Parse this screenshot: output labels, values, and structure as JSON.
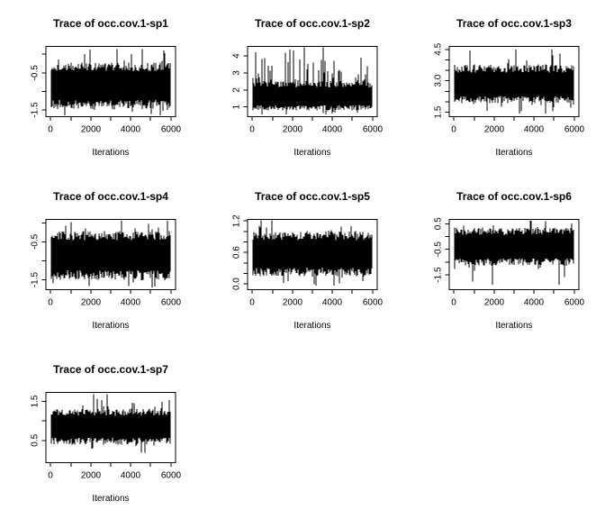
{
  "colors": {
    "foreground": "#000000",
    "background": "#ffffff"
  },
  "chart_data": [
    {
      "type": "line",
      "title": "Trace of occ.cov.1-sp1",
      "xlabel": "Iterations",
      "x": {
        "lim": [
          -240,
          6240
        ],
        "ticks": [
          {
            "v": 0,
            "label": "0"
          },
          {
            "v": 1000,
            "label": ""
          },
          {
            "v": 2000,
            "label": "2000"
          },
          {
            "v": 3000,
            "label": ""
          },
          {
            "v": 4000,
            "label": "4000"
          },
          {
            "v": 5000,
            "label": ""
          },
          {
            "v": 6000,
            "label": "6000"
          }
        ]
      },
      "y": {
        "lim": [
          -1.68,
          0.21
        ],
        "ticks": [
          {
            "v": 0,
            "label": ""
          },
          {
            "v": -0.5,
            "label": "-0.5"
          },
          {
            "v": -1.0,
            "label": ""
          },
          {
            "v": -1.5,
            "label": "-1.5"
          }
        ]
      },
      "series": {
        "name": "occ.cov.1-sp1",
        "n": 6000,
        "mean": -0.82,
        "dense_band": [
          -1.4,
          -0.3
        ],
        "range": [
          -1.64,
          0.14
        ],
        "spike_bias": "none",
        "seed": 101
      }
    },
    {
      "type": "line",
      "title": "Trace of occ.cov.1-sp2",
      "xlabel": "Iterations",
      "x": {
        "lim": [
          -240,
          6240
        ],
        "ticks": [
          {
            "v": 0,
            "label": "0"
          },
          {
            "v": 1000,
            "label": ""
          },
          {
            "v": 2000,
            "label": "2000"
          },
          {
            "v": 3000,
            "label": ""
          },
          {
            "v": 4000,
            "label": "4000"
          },
          {
            "v": 5000,
            "label": ""
          },
          {
            "v": 6000,
            "label": "6000"
          }
        ]
      },
      "y": {
        "lim": [
          0.43,
          4.56
        ],
        "ticks": [
          {
            "v": 4,
            "label": "4"
          },
          {
            "v": 3,
            "label": "3"
          },
          {
            "v": 2,
            "label": "2"
          },
          {
            "v": 1,
            "label": "1"
          }
        ]
      },
      "series": {
        "name": "occ.cov.1-sp2",
        "n": 6000,
        "mean": 1.6,
        "dense_band": [
          0.9,
          2.4
        ],
        "range": [
          0.55,
          4.5
        ],
        "spike_bias": "up",
        "seed": 202
      }
    },
    {
      "type": "line",
      "title": "Trace of occ.cov.1-sp3",
      "xlabel": "Iterations",
      "x": {
        "lim": [
          -240,
          6240
        ],
        "ticks": [
          {
            "v": 0,
            "label": "0"
          },
          {
            "v": 1000,
            "label": ""
          },
          {
            "v": 2000,
            "label": "2000"
          },
          {
            "v": 3000,
            "label": ""
          },
          {
            "v": 4000,
            "label": "4000"
          },
          {
            "v": 5000,
            "label": ""
          },
          {
            "v": 6000,
            "label": "6000"
          }
        ]
      },
      "y": {
        "lim": [
          1.29,
          4.64
        ],
        "ticks": [
          {
            "v": 4.5,
            "label": "4.5"
          },
          {
            "v": 4.0,
            "label": ""
          },
          {
            "v": 3.5,
            "label": ""
          },
          {
            "v": 3.0,
            "label": "3.0"
          },
          {
            "v": 2.5,
            "label": ""
          },
          {
            "v": 2.0,
            "label": ""
          },
          {
            "v": 1.5,
            "label": "1.5"
          }
        ]
      },
      "series": {
        "name": "occ.cov.1-sp3",
        "n": 6000,
        "mean": 2.8,
        "dense_band": [
          2.05,
          3.65
        ],
        "range": [
          1.45,
          4.5
        ],
        "spike_bias": "none",
        "seed": 303
      }
    },
    {
      "type": "line",
      "title": "Trace of occ.cov.1-sp4",
      "xlabel": "Iterations",
      "x": {
        "lim": [
          -240,
          6240
        ],
        "ticks": [
          {
            "v": 0,
            "label": "0"
          },
          {
            "v": 1000,
            "label": ""
          },
          {
            "v": 2000,
            "label": "2000"
          },
          {
            "v": 3000,
            "label": ""
          },
          {
            "v": 4000,
            "label": "4000"
          },
          {
            "v": 5000,
            "label": ""
          },
          {
            "v": 6000,
            "label": "6000"
          }
        ]
      },
      "y": {
        "lim": [
          -1.76,
          0.09
        ],
        "ticks": [
          {
            "v": 0,
            "label": ""
          },
          {
            "v": -0.5,
            "label": "-0.5"
          },
          {
            "v": -1.0,
            "label": ""
          },
          {
            "v": -1.5,
            "label": "-1.5"
          }
        ]
      },
      "series": {
        "name": "occ.cov.1-sp4",
        "n": 6000,
        "mean": -0.84,
        "dense_band": [
          -1.42,
          -0.3
        ],
        "range": [
          -1.7,
          0.05
        ],
        "spike_bias": "none",
        "seed": 404
      }
    },
    {
      "type": "line",
      "title": "Trace of occ.cov.1-sp5",
      "xlabel": "Iterations",
      "x": {
        "lim": [
          -240,
          6240
        ],
        "ticks": [
          {
            "v": 0,
            "label": "0"
          },
          {
            "v": 1000,
            "label": ""
          },
          {
            "v": 2000,
            "label": "2000"
          },
          {
            "v": 3000,
            "label": ""
          },
          {
            "v": 4000,
            "label": "4000"
          },
          {
            "v": 5000,
            "label": ""
          },
          {
            "v": 6000,
            "label": "6000"
          }
        ]
      },
      "y": {
        "lim": [
          -0.11,
          1.23
        ],
        "ticks": [
          {
            "v": 1.2,
            "label": "1.2"
          },
          {
            "v": 1.0,
            "label": ""
          },
          {
            "v": 0.8,
            "label": ""
          },
          {
            "v": 0.6,
            "label": "0.6"
          },
          {
            "v": 0.4,
            "label": ""
          },
          {
            "v": 0.2,
            "label": ""
          },
          {
            "v": 0.0,
            "label": "0.0"
          }
        ]
      },
      "series": {
        "name": "occ.cov.1-sp5",
        "n": 6000,
        "mean": 0.57,
        "dense_band": [
          0.2,
          0.95
        ],
        "range": [
          -0.03,
          1.21
        ],
        "spike_bias": "none",
        "seed": 505
      }
    },
    {
      "type": "line",
      "title": "Trace of occ.cov.1-sp6",
      "xlabel": "Iterations",
      "x": {
        "lim": [
          -240,
          6240
        ],
        "ticks": [
          {
            "v": 0,
            "label": "0"
          },
          {
            "v": 1000,
            "label": ""
          },
          {
            "v": 2000,
            "label": "2000"
          },
          {
            "v": 3000,
            "label": ""
          },
          {
            "v": 4000,
            "label": "4000"
          },
          {
            "v": 5000,
            "label": ""
          },
          {
            "v": 6000,
            "label": "6000"
          }
        ]
      },
      "y": {
        "lim": [
          -2.08,
          0.67
        ],
        "ticks": [
          {
            "v": 0.5,
            "label": "0.5"
          },
          {
            "v": 0.0,
            "label": ""
          },
          {
            "v": -0.5,
            "label": "-0.5"
          },
          {
            "v": -1.0,
            "label": ""
          },
          {
            "v": -1.5,
            "label": "-1.5"
          }
        ]
      },
      "series": {
        "name": "occ.cov.1-sp6",
        "n": 6000,
        "mean": -0.4,
        "dense_band": [
          -1.05,
          0.25
        ],
        "range": [
          -1.88,
          0.62
        ],
        "spike_bias": "none",
        "seed": 606
      }
    },
    {
      "type": "line",
      "title": "Trace of occ.cov.1-sp7",
      "xlabel": "Iterations",
      "x": {
        "lim": [
          -240,
          6240
        ],
        "ticks": [
          {
            "v": 0,
            "label": "0"
          },
          {
            "v": 1000,
            "label": ""
          },
          {
            "v": 2000,
            "label": "2000"
          },
          {
            "v": 3000,
            "label": ""
          },
          {
            "v": 4000,
            "label": "4000"
          },
          {
            "v": 5000,
            "label": ""
          },
          {
            "v": 6000,
            "label": "6000"
          }
        ]
      },
      "y": {
        "lim": [
          -0.07,
          1.73
        ],
        "ticks": [
          {
            "v": 1.5,
            "label": "1.5"
          },
          {
            "v": 1.0,
            "label": ""
          },
          {
            "v": 0.5,
            "label": "0.5"
          }
        ]
      },
      "series": {
        "name": "occ.cov.1-sp7",
        "n": 6000,
        "mean": 0.85,
        "dense_band": [
          0.45,
          1.25
        ],
        "range": [
          0.18,
          1.68
        ],
        "spike_bias": "none",
        "seed": 707
      }
    }
  ]
}
